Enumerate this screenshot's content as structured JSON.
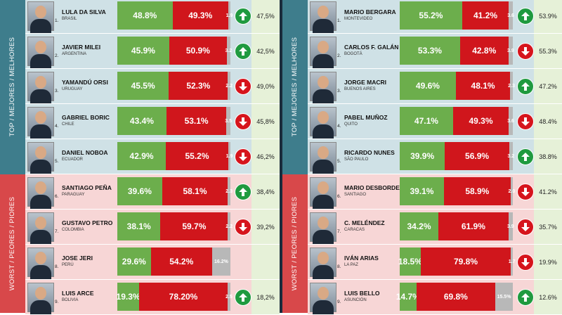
{
  "bands": {
    "top_label": "TOP / MEJORES / MELHORES",
    "worst_label": "WORST / PEORES / PIORES"
  },
  "colors": {
    "approve": "#6cae4c",
    "disapprove": "#d0161c",
    "no_answer": "#b8b8b8",
    "up": "#1f9a3f",
    "down": "#d6141c",
    "top_band": "#3e7d8c",
    "worst_band": "#d8484a"
  },
  "chart_data": [
    {
      "type": "bar",
      "series": [
        "approve",
        "disapprove",
        "no_answer"
      ],
      "rows": [
        {
          "rank": "1.",
          "name": "LULA DA SILVA",
          "place": "BRASIL",
          "approve": 48.8,
          "approve_label": "48.8%",
          "disapprove": 49.3,
          "disapprove_label": "49.3%",
          "other": 1.9,
          "other_label": "1.9",
          "trend": "up",
          "score": "47,5%",
          "group": "top"
        },
        {
          "rank": "2.",
          "name": "JAVIER MILEI",
          "place": "ARGENTINA",
          "approve": 45.9,
          "approve_label": "45.9%",
          "disapprove": 50.9,
          "disapprove_label": "50.9%",
          "other": 3.2,
          "other_label": "3.2",
          "trend": "up",
          "score": "42,5%",
          "group": "top"
        },
        {
          "rank": "3.",
          "name": "YAMANDÚ ORSI",
          "place": "URUGUAY",
          "approve": 45.5,
          "approve_label": "45.5%",
          "disapprove": 52.3,
          "disapprove_label": "52.3%",
          "other": 2.2,
          "other_label": "2.2",
          "trend": "down",
          "score": "49,0%",
          "group": "top"
        },
        {
          "rank": "4.",
          "name": "GABRIEL BORIC",
          "place": "CHILE",
          "approve": 43.4,
          "approve_label": "43.4%",
          "disapprove": 53.1,
          "disapprove_label": "53.1%",
          "other": 3.5,
          "other_label": "3.5",
          "trend": "down",
          "score": "45,8%",
          "group": "top"
        },
        {
          "rank": "5.",
          "name": "DANIEL NOBOA",
          "place": "ECUADOR",
          "approve": 42.9,
          "approve_label": "42.9%",
          "disapprove": 55.2,
          "disapprove_label": "55.2%",
          "other": 1.9,
          "other_label": "1.9",
          "trend": "down",
          "score": "46,2%",
          "group": "top"
        },
        {
          "rank": "6.",
          "name": "SANTIAGO PEÑA",
          "place": "PARAGUAY",
          "approve": 39.6,
          "approve_label": "39.6%",
          "disapprove": 58.1,
          "disapprove_label": "58.1%",
          "other": 2.3,
          "other_label": "2.3",
          "trend": "up",
          "score": "38,4%",
          "group": "worst"
        },
        {
          "rank": "7.",
          "name": "GUSTAVO PETRO",
          "place": "COLOMBIA",
          "approve": 38.1,
          "approve_label": "38.1%",
          "disapprove": 59.7,
          "disapprove_label": "59.7%",
          "other": 2.2,
          "other_label": "2.2",
          "trend": "down",
          "score": "39,2%",
          "group": "worst"
        },
        {
          "rank": "8.",
          "name": "JOSE JERI",
          "place": "PERÚ",
          "approve": 29.6,
          "approve_label": "29.6%",
          "disapprove": 54.2,
          "disapprove_label": "54.2%",
          "other": 16.2,
          "other_label": "16.2%",
          "trend": "none",
          "score": "",
          "group": "worst"
        },
        {
          "rank": "9.",
          "name": "LUIS ARCE",
          "place": "BOLIVIA",
          "approve": 19.3,
          "approve_label": "19.3%",
          "disapprove": 78.2,
          "disapprove_label": "78.20%",
          "other": 2.5,
          "other_label": "2.5",
          "trend": "up",
          "score": "18,2%",
          "group": "worst"
        }
      ]
    },
    {
      "type": "bar",
      "series": [
        "approve",
        "disapprove",
        "no_answer"
      ],
      "rows": [
        {
          "rank": "1.",
          "name": "MARIO BERGARA",
          "place": "MONTEVIDEO",
          "approve": 55.2,
          "approve_label": "55.2%",
          "disapprove": 41.2,
          "disapprove_label": "41.2%",
          "other": 3.6,
          "other_label": "3.6",
          "trend": "up",
          "score": "53.9%",
          "group": "top"
        },
        {
          "rank": "2.",
          "name": "CARLOS F. GALÁN",
          "place": "BOGOTÁ",
          "approve": 53.3,
          "approve_label": "53.3%",
          "disapprove": 42.8,
          "disapprove_label": "42.8%",
          "other": 3.9,
          "other_label": "3.9",
          "trend": "down",
          "score": "55.3%",
          "group": "top"
        },
        {
          "rank": "3.",
          "name": "JORGE MACRI",
          "place": "BUENOS AIRES",
          "approve": 49.6,
          "approve_label": "49.6%",
          "disapprove": 48.1,
          "disapprove_label": "48.1%",
          "other": 2.3,
          "other_label": "2.3",
          "trend": "up",
          "score": "47.2%",
          "group": "top"
        },
        {
          "rank": "4.",
          "name": "PABEL MUÑOZ",
          "place": "QUITO",
          "approve": 47.1,
          "approve_label": "47.1%",
          "disapprove": 49.3,
          "disapprove_label": "49.3%",
          "other": 3.6,
          "other_label": "3.6",
          "trend": "down",
          "score": "48.4%",
          "group": "top"
        },
        {
          "rank": "5.",
          "name": "RICARDO NUNES",
          "place": "SÃO PAULO",
          "approve": 39.9,
          "approve_label": "39.9%",
          "disapprove": 56.9,
          "disapprove_label": "56.9%",
          "other": 3.2,
          "other_label": "3.2",
          "trend": "up",
          "score": "38.8%",
          "group": "top"
        },
        {
          "rank": "6.",
          "name": "MARIO DESBORDES",
          "place": "SANTIAGO",
          "approve": 39.1,
          "approve_label": "39.1%",
          "disapprove": 58.9,
          "disapprove_label": "58.9%",
          "other": 2.0,
          "other_label": "2.0",
          "trend": "down",
          "score": "41.2%",
          "group": "worst"
        },
        {
          "rank": "7.",
          "name": "C. MELÉNDEZ",
          "place": "CARACAS",
          "approve": 34.2,
          "approve_label": "34.2%",
          "disapprove": 61.9,
          "disapprove_label": "61.9%",
          "other": 3.9,
          "other_label": "3.9",
          "trend": "down",
          "score": "35.7%",
          "group": "worst"
        },
        {
          "rank": "8.",
          "name": "IVÁN ARIAS",
          "place": "LA PAZ",
          "approve": 18.5,
          "approve_label": "18.5%",
          "disapprove": 79.8,
          "disapprove_label": "79.8%",
          "other": 1.7,
          "other_label": "1.7",
          "trend": "down",
          "score": "19.9%",
          "group": "worst"
        },
        {
          "rank": "9.",
          "name": "LUIS BELLO",
          "place": "ASUNCIÓN",
          "approve": 14.7,
          "approve_label": "14.7%",
          "disapprove": 69.8,
          "disapprove_label": "69.8%",
          "other": 15.5,
          "other_label": "15.5%",
          "trend": "up",
          "score": "12.6%",
          "group": "worst"
        }
      ]
    }
  ]
}
